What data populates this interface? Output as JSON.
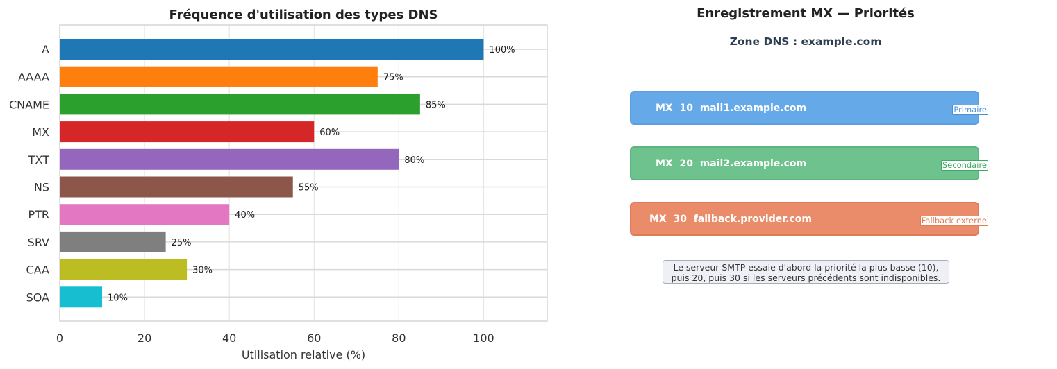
{
  "chart_data": {
    "type": "bar",
    "orientation": "horizontal",
    "title": "Fréquence d'utilisation des types DNS",
    "xlabel": "Utilisation relative (%)",
    "ylabel": "",
    "categories": [
      "A",
      "AAAA",
      "CNAME",
      "MX",
      "TXT",
      "NS",
      "PTR",
      "SRV",
      "CAA",
      "SOA"
    ],
    "values": [
      100,
      75,
      85,
      60,
      80,
      55,
      40,
      25,
      30,
      10
    ],
    "value_labels": [
      "100%",
      "75%",
      "85%",
      "60%",
      "80%",
      "55%",
      "40%",
      "25%",
      "30%",
      "10%"
    ],
    "colors": [
      "#1f77b4",
      "#ff7f0e",
      "#2ca02c",
      "#d62728",
      "#9467bd",
      "#8c564b",
      "#e377c2",
      "#7f7f7f",
      "#bcbd22",
      "#17becf"
    ],
    "xlim": [
      0,
      115
    ],
    "xticks": [
      0,
      20,
      40,
      60,
      80,
      100
    ],
    "xtick_labels": [
      "0",
      "20",
      "40",
      "60",
      "80",
      "100"
    ],
    "grid": true
  },
  "mx_panel": {
    "title": "Enregistrement MX — Priorités",
    "subtitle": "Zone DNS : example.com",
    "records": [
      {
        "label": "MX  10  mail1.example.com",
        "badge": "Primaire",
        "color": "#66a9e9",
        "border": "#5a9fe0",
        "badge_color": "#4a90d9"
      },
      {
        "label": "MX  20  mail2.example.com",
        "badge": "Secondaire",
        "color": "#6dc28d",
        "border": "#5bb57d",
        "badge_color": "#3fa864"
      },
      {
        "label": "MX  30  fallback.provider.com",
        "badge": "Fallback externe",
        "color": "#ea8c69",
        "border": "#e07b56",
        "badge_color": "#e07b56"
      }
    ],
    "note_line1": "Le serveur SMTP essaie d'abord la priorité la plus basse (10),",
    "note_line2": "puis 20, puis 30 si les serveurs précédents sont indisponibles."
  }
}
